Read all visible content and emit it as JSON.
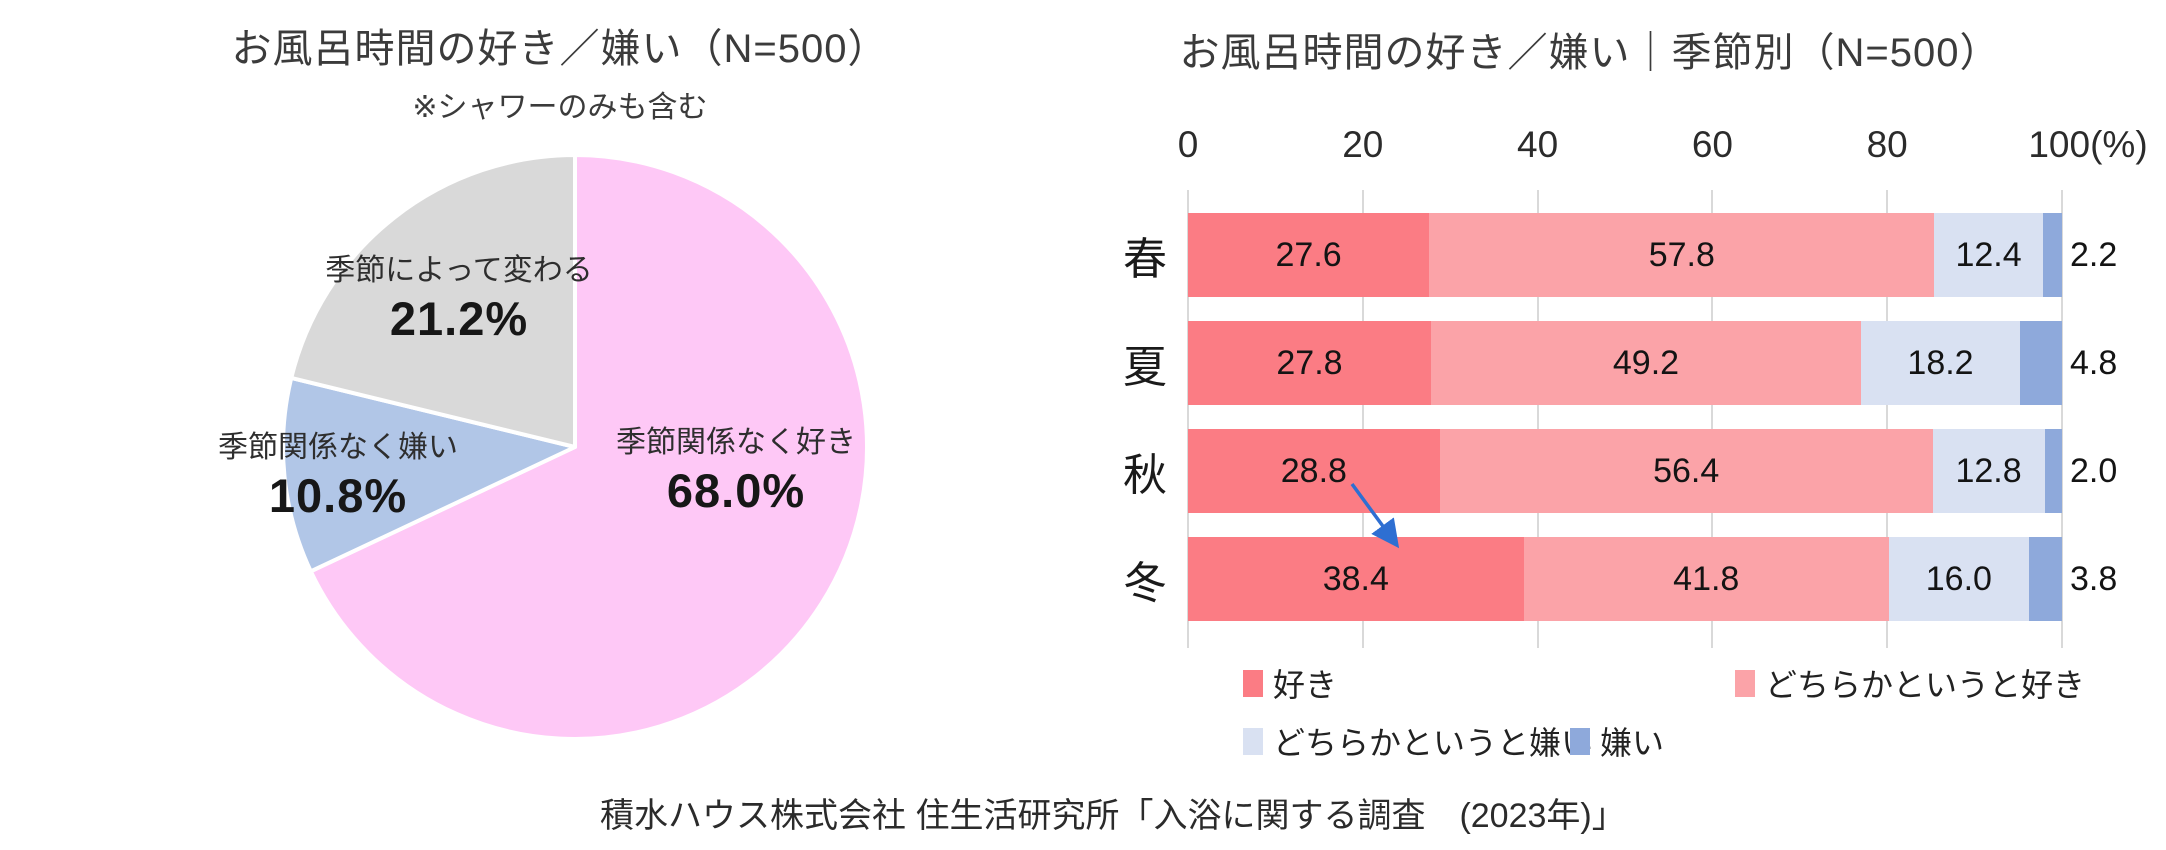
{
  "caption": "積水ハウス株式会社 住生活研究所「入浴に関する調査　(2023年)」",
  "chart_data": [
    {
      "type": "pie",
      "title": "お風呂時間の好き／嫌い（N=500）",
      "subtitle": "※シャワーのみも含む",
      "start_angle": "top",
      "direction": "clockwise",
      "slices": [
        {
          "label": "季節関係なく好き",
          "value": 68.0,
          "color": "#FEC8F6"
        },
        {
          "label": "季節関係なく嫌い",
          "value": 10.8,
          "color": "#B1C6E7"
        },
        {
          "label": "季節によって変わる",
          "value": 21.2,
          "color": "#D9D9D9"
        }
      ]
    },
    {
      "type": "bar",
      "orientation": "horizontal-stacked",
      "title": "お風呂時間の好き／嫌い｜季節別（N=500）",
      "categories": [
        "春",
        "夏",
        "秋",
        "冬"
      ],
      "series": [
        {
          "name": "好き",
          "color": "#FB7C84",
          "values": [
            27.6,
            27.8,
            28.8,
            38.4
          ]
        },
        {
          "name": "どちらかというと好き",
          "color": "#FBA3A8",
          "values": [
            57.8,
            49.2,
            56.4,
            41.8
          ]
        },
        {
          "name": "どちらかというと嫌い",
          "color": "#D9E1F2",
          "values": [
            12.4,
            18.2,
            12.8,
            16.0
          ]
        },
        {
          "name": "嫌い",
          "color": "#8EA9DB",
          "values": [
            2.2,
            4.8,
            2.0,
            3.8
          ]
        }
      ],
      "x_ticks": [
        0,
        20,
        40,
        60,
        80,
        100
      ],
      "x_axis_suffix": "(%)",
      "xlim": [
        0,
        100
      ],
      "gridlines": true,
      "legend_position": "bottom",
      "annotations": [
        {
          "type": "arrow",
          "color": "#2E6FD2",
          "from": "秋 value label 28.8",
          "to": "冬 bar first segment"
        }
      ]
    }
  ]
}
